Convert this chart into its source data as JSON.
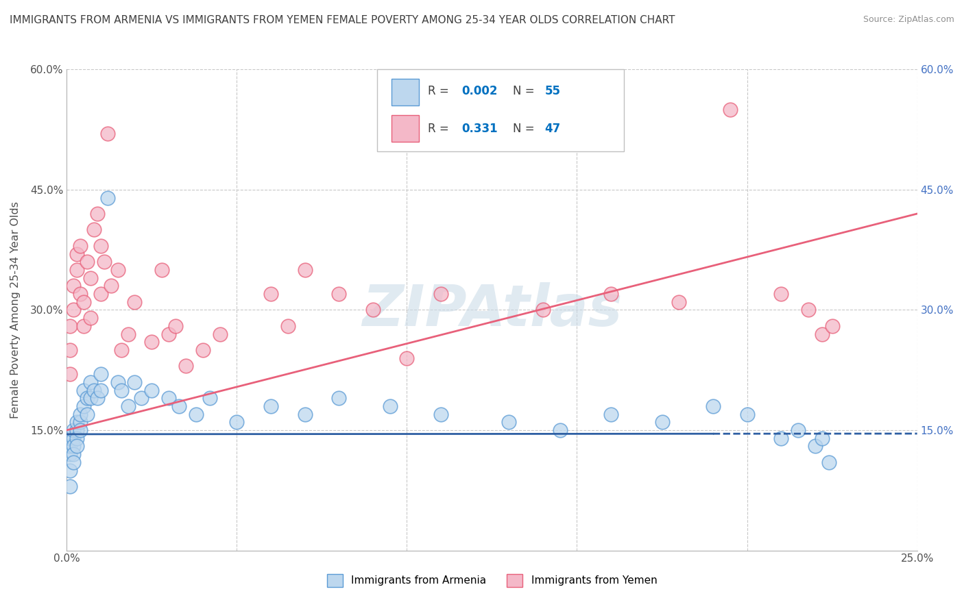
{
  "title": "IMMIGRANTS FROM ARMENIA VS IMMIGRANTS FROM YEMEN FEMALE POVERTY AMONG 25-34 YEAR OLDS CORRELATION CHART",
  "source": "Source: ZipAtlas.com",
  "ylabel": "Female Poverty Among 25-34 Year Olds",
  "xlim": [
    0,
    0.25
  ],
  "ylim": [
    0,
    0.6
  ],
  "armenia_color_edge": "#5b9bd5",
  "armenia_color_fill": "#bdd7ee",
  "yemen_color_edge": "#e8607a",
  "yemen_color_fill": "#f4b8c8",
  "trendline_armenia_color": "#2e5fa3",
  "trendline_yemen_color": "#e8607a",
  "watermark": "ZIPAtlas",
  "watermark_color": "#ccdce8",
  "background_color": "#ffffff",
  "grid_color": "#c8c8c8",
  "title_color": "#404040",
  "source_color": "#909090",
  "legend_R_color": "#0070c0",
  "legend_N_color": "#0070c0",
  "right_axis_color": "#4472c4",
  "armenia_x": [
    0.001,
    0.001,
    0.001,
    0.001,
    0.001,
    0.002,
    0.002,
    0.002,
    0.002,
    0.002,
    0.003,
    0.003,
    0.003,
    0.003,
    0.004,
    0.004,
    0.004,
    0.005,
    0.005,
    0.006,
    0.006,
    0.007,
    0.007,
    0.008,
    0.009,
    0.01,
    0.01,
    0.012,
    0.015,
    0.016,
    0.018,
    0.02,
    0.022,
    0.025,
    0.03,
    0.033,
    0.038,
    0.042,
    0.05,
    0.06,
    0.07,
    0.08,
    0.095,
    0.11,
    0.13,
    0.145,
    0.16,
    0.175,
    0.19,
    0.2,
    0.21,
    0.215,
    0.22,
    0.222,
    0.224
  ],
  "armenia_y": [
    0.1,
    0.12,
    0.13,
    0.14,
    0.08,
    0.14,
    0.13,
    0.15,
    0.12,
    0.11,
    0.15,
    0.16,
    0.14,
    0.13,
    0.16,
    0.17,
    0.15,
    0.18,
    0.2,
    0.19,
    0.17,
    0.21,
    0.19,
    0.2,
    0.19,
    0.22,
    0.2,
    0.44,
    0.21,
    0.2,
    0.18,
    0.21,
    0.19,
    0.2,
    0.19,
    0.18,
    0.17,
    0.19,
    0.16,
    0.18,
    0.17,
    0.19,
    0.18,
    0.17,
    0.16,
    0.15,
    0.17,
    0.16,
    0.18,
    0.17,
    0.14,
    0.15,
    0.13,
    0.14,
    0.11
  ],
  "yemen_x": [
    0.001,
    0.001,
    0.001,
    0.002,
    0.002,
    0.003,
    0.003,
    0.004,
    0.004,
    0.005,
    0.005,
    0.006,
    0.007,
    0.007,
    0.008,
    0.009,
    0.01,
    0.01,
    0.011,
    0.012,
    0.013,
    0.015,
    0.016,
    0.018,
    0.02,
    0.025,
    0.028,
    0.03,
    0.032,
    0.035,
    0.04,
    0.045,
    0.06,
    0.065,
    0.07,
    0.08,
    0.09,
    0.1,
    0.11,
    0.14,
    0.16,
    0.18,
    0.195,
    0.21,
    0.218,
    0.222,
    0.225
  ],
  "yemen_y": [
    0.22,
    0.25,
    0.28,
    0.3,
    0.33,
    0.35,
    0.37,
    0.32,
    0.38,
    0.28,
    0.31,
    0.36,
    0.29,
    0.34,
    0.4,
    0.42,
    0.32,
    0.38,
    0.36,
    0.52,
    0.33,
    0.35,
    0.25,
    0.27,
    0.31,
    0.26,
    0.35,
    0.27,
    0.28,
    0.23,
    0.25,
    0.27,
    0.32,
    0.28,
    0.35,
    0.32,
    0.3,
    0.24,
    0.32,
    0.3,
    0.32,
    0.31,
    0.55,
    0.32,
    0.3,
    0.27,
    0.28
  ],
  "legend_entries": [
    {
      "label": "Immigrants from Armenia",
      "R": "0.002",
      "N": "55"
    },
    {
      "label": "Immigrants from Yemen",
      "R": "0.331",
      "N": "47"
    }
  ]
}
